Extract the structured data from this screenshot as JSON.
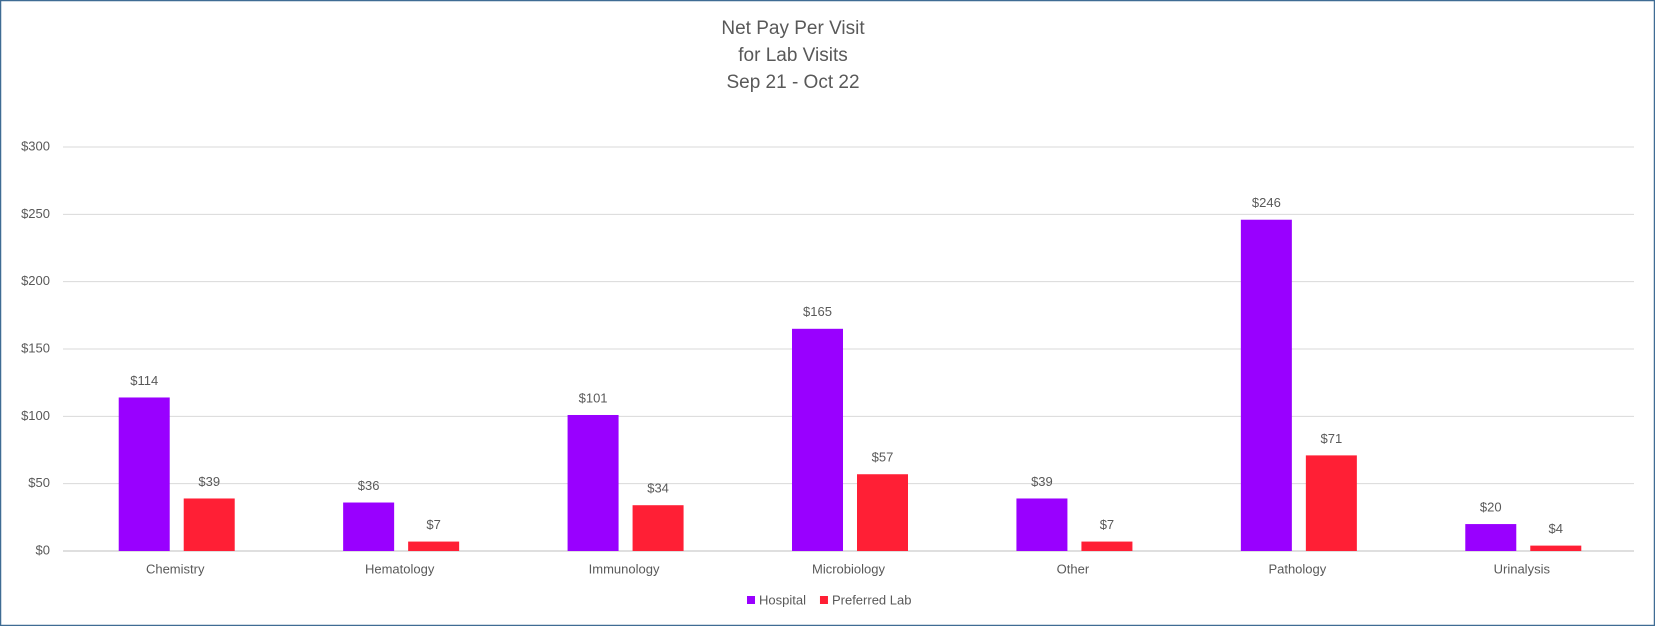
{
  "chart_data": {
    "type": "bar",
    "title": [
      "Net Pay Per Visit",
      "for Lab Visits",
      "Sep 21 - Oct 22"
    ],
    "categories": [
      "Chemistry",
      "Hematology",
      "Immunology",
      "Microbiology",
      "Other",
      "Pathology",
      "Urinalysis"
    ],
    "series": [
      {
        "name": "Hospital",
        "color": "#9900ff",
        "values": [
          114,
          36,
          101,
          165,
          39,
          246,
          20
        ],
        "value_labels": [
          "$114",
          "$36",
          "$101",
          "$165",
          "$39",
          "$246",
          "$20"
        ]
      },
      {
        "name": "Preferred Lab",
        "color": "#ff1f35",
        "values": [
          39,
          7,
          34,
          57,
          7,
          71,
          4
        ],
        "value_labels": [
          "$39",
          "$7",
          "$34",
          "$57",
          "$7",
          "$71",
          "$4"
        ]
      }
    ],
    "ylim": [
      0,
      300
    ],
    "yticks": [
      {
        "value": 0,
        "label": "$0"
      },
      {
        "value": 50,
        "label": "$50"
      },
      {
        "value": 100,
        "label": "$100"
      },
      {
        "value": 150,
        "label": "$150"
      },
      {
        "value": 200,
        "label": "$200"
      },
      {
        "value": 250,
        "label": "$250"
      },
      {
        "value": 300,
        "label": "$300"
      }
    ],
    "grid": true,
    "legend": "bottom"
  }
}
